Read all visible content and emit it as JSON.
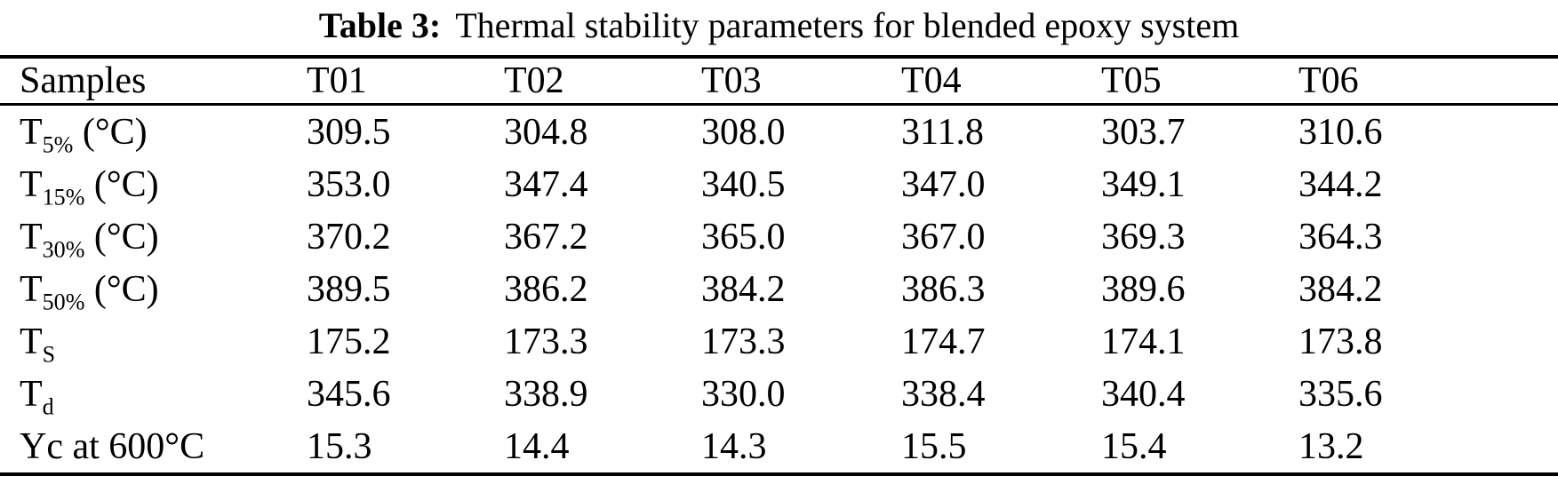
{
  "caption": {
    "label": "Table 3:",
    "text": "Thermal stability parameters for blended epoxy system"
  },
  "table": {
    "columns": [
      "Samples",
      "T01",
      "T02",
      "T03",
      "T04",
      "T05",
      "T06"
    ],
    "rows": [
      {
        "label_base": "T",
        "label_sub": "5%",
        "label_suffix": " (°C)",
        "values": [
          "309.5",
          "304.8",
          "308.0",
          "311.8",
          "303.7",
          "310.6"
        ]
      },
      {
        "label_base": "T",
        "label_sub": "15%",
        "label_suffix": " (°C)",
        "values": [
          "353.0",
          "347.4",
          "340.5",
          "347.0",
          "349.1",
          "344.2"
        ]
      },
      {
        "label_base": "T",
        "label_sub": "30%",
        "label_suffix": " (°C)",
        "values": [
          "370.2",
          "367.2",
          "365.0",
          "367.0",
          "369.3",
          "364.3"
        ]
      },
      {
        "label_base": "T",
        "label_sub": "50%",
        "label_suffix": " (°C)",
        "values": [
          "389.5",
          "386.2",
          "384.2",
          "386.3",
          "389.6",
          "384.2"
        ]
      },
      {
        "label_base": "T",
        "label_sub": "S",
        "label_suffix": "",
        "values": [
          "175.2",
          "173.3",
          "173.3",
          "174.7",
          "174.1",
          "173.8"
        ]
      },
      {
        "label_base": "T",
        "label_sub": "d",
        "label_suffix": "",
        "values": [
          "345.6",
          "338.9",
          "330.0",
          "338.4",
          "340.4",
          "335.6"
        ]
      },
      {
        "label_base": "Yc at 600°C",
        "label_sub": "",
        "label_suffix": "",
        "values": [
          "15.3",
          "14.4",
          "14.3",
          "15.5",
          "15.4",
          "13.2"
        ]
      }
    ]
  },
  "colors": {
    "text": "#000000",
    "background": "#ffffff",
    "rule": "#000000"
  }
}
